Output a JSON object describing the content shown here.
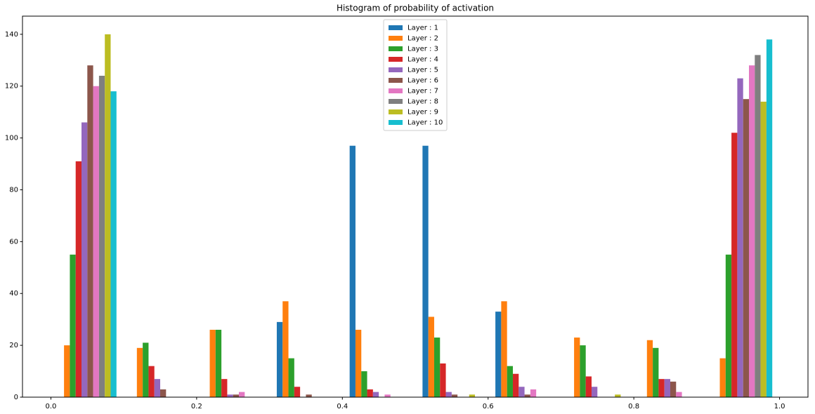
{
  "chart_data": {
    "type": "histogram",
    "title": "Histogram of probability of activation",
    "bins": [
      0,
      0.1,
      0.2,
      0.3,
      0.4,
      0.5,
      0.6,
      0.7,
      0.8,
      0.9,
      1.0
    ],
    "series": [
      {
        "name": "Layer : 1",
        "color": "#1f77b4",
        "values": [
          0,
          0,
          0,
          29,
          97,
          97,
          33,
          0,
          0,
          0
        ]
      },
      {
        "name": "Layer : 2",
        "color": "#ff7f0e",
        "values": [
          20,
          19,
          26,
          37,
          26,
          31,
          37,
          23,
          22,
          15
        ]
      },
      {
        "name": "Layer : 3",
        "color": "#2ca02c",
        "values": [
          55,
          21,
          26,
          15,
          10,
          23,
          12,
          20,
          19,
          55
        ]
      },
      {
        "name": "Layer : 4",
        "color": "#d62728",
        "values": [
          91,
          12,
          7,
          4,
          3,
          13,
          9,
          8,
          7,
          102
        ]
      },
      {
        "name": "Layer : 5",
        "color": "#9467bd",
        "values": [
          106,
          7,
          1,
          0,
          2,
          2,
          4,
          4,
          7,
          123
        ]
      },
      {
        "name": "Layer : 6",
        "color": "#8c564b",
        "values": [
          128,
          3,
          1,
          1,
          0,
          1,
          1,
          0,
          6,
          115
        ]
      },
      {
        "name": "Layer : 7",
        "color": "#e377c2",
        "values": [
          120,
          0,
          2,
          0,
          1,
          0,
          3,
          0,
          2,
          128
        ]
      },
      {
        "name": "Layer : 8",
        "color": "#7f7f7f",
        "values": [
          124,
          0,
          0,
          0,
          0,
          0,
          0,
          0,
          0,
          132
        ]
      },
      {
        "name": "Layer : 9",
        "color": "#bcbd22",
        "values": [
          140,
          0,
          0,
          0,
          0,
          1,
          0,
          1,
          0,
          114
        ]
      },
      {
        "name": "Layer : 10",
        "color": "#17becf",
        "values": [
          118,
          0,
          0,
          0,
          0,
          0,
          0,
          0,
          0,
          138
        ]
      }
    ],
    "xlim": [
      -0.039,
      1.039
    ],
    "xticks": [
      {
        "value": 0,
        "label": "0.0"
      },
      0.2,
      0.4,
      0.6,
      0.8,
      {
        "value": 1,
        "label": "1.0"
      }
    ],
    "ylim": [
      0,
      147
    ],
    "yticks": [
      0,
      20,
      40,
      60,
      80,
      100,
      120,
      140
    ],
    "legend": "upper center"
  }
}
